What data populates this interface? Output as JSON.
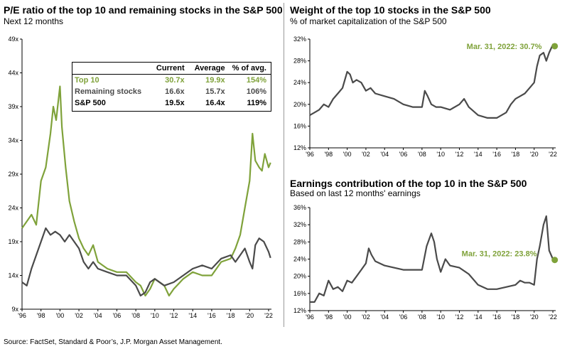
{
  "colors": {
    "top10": "#7fa23a",
    "remaining": "#4a4a4a",
    "axis": "#000000",
    "divider": "#9a9a9a"
  },
  "source": "Source: FactSet, Standard & Poor’s, J.P. Morgan Asset Management.",
  "pe_chart": {
    "title": "P/E ratio of the top 10 and remaining stocks in the S&P 500",
    "subtitle": "Next 12 months",
    "table": {
      "headers": [
        "",
        "Current",
        "Average",
        "% of avg."
      ],
      "rows": [
        {
          "name": "Top 10",
          "current": "30.7x",
          "average": "19.9x",
          "pct": "154%",
          "color": "#7fa23a"
        },
        {
          "name": "Remaining stocks",
          "current": "16.6x",
          "average": "15.7x",
          "pct": "106%",
          "color": "#4a4a4a"
        },
        {
          "name": "S&P 500",
          "current": "19.5x",
          "average": "16.4x",
          "pct": "119%",
          "color": "#000000"
        }
      ]
    }
  },
  "weight_chart": {
    "title": "Weight of the top 10 stocks in the S&P 500",
    "subtitle": "% of market capitalization of the S&P 500",
    "annotation": "Mar. 31, 2022: 30.7%"
  },
  "earnings_chart": {
    "title": "Earnings contribution of the top 10 in the S&P 500",
    "subtitle": "Based on last 12 months' earnings",
    "annotation": "Mar. 31, 2022: 23.8%"
  },
  "chart_data": [
    {
      "type": "line",
      "xlim": [
        1996,
        2022.3
      ],
      "ylim": [
        9,
        49
      ],
      "ytick_labels": [
        "9x",
        "14x",
        "19x",
        "24x",
        "29x",
        "34x",
        "39x",
        "44x",
        "49x"
      ],
      "ytick_values": [
        9,
        14,
        19,
        24,
        29,
        34,
        39,
        44,
        49
      ],
      "xtick_labels": [
        "'96",
        "'98",
        "'00",
        "'02",
        "'04",
        "'06",
        "'08",
        "'10",
        "'12",
        "'14",
        "'16",
        "'18",
        "'20",
        "'22"
      ],
      "xtick_values": [
        1996,
        1998,
        2000,
        2002,
        2004,
        2006,
        2008,
        2010,
        2012,
        2014,
        2016,
        2018,
        2020,
        2022
      ],
      "series": [
        {
          "name": "Top 10",
          "color": "#7fa23a",
          "x": [
            1996,
            1996.5,
            1997,
            1997.5,
            1998,
            1998.5,
            1999,
            1999.3,
            1999.6,
            2000,
            2000.2,
            2000.6,
            2001,
            2001.5,
            2002,
            2002.5,
            2003,
            2003.5,
            2004,
            2005,
            2006,
            2007,
            2008,
            2008.5,
            2009,
            2009.5,
            2010,
            2011,
            2011.5,
            2012,
            2013,
            2014,
            2015,
            2016,
            2017,
            2018,
            2018.5,
            2019,
            2019.5,
            2020,
            2020.3,
            2020.6,
            2021,
            2021.3,
            2021.6,
            2022,
            2022.2
          ],
          "y": [
            21,
            22,
            23,
            21.5,
            28,
            30,
            35,
            39,
            37,
            42,
            36,
            30,
            25,
            22,
            19.5,
            18,
            17,
            18.5,
            16,
            15,
            14.5,
            14.5,
            13,
            12.5,
            11,
            12,
            13.5,
            12.5,
            11,
            12,
            13.5,
            14.5,
            14,
            14,
            16,
            16.5,
            18,
            20,
            24,
            28,
            35,
            31,
            30,
            29.5,
            32,
            30,
            30.7
          ]
        },
        {
          "name": "Remaining stocks",
          "color": "#4a4a4a",
          "x": [
            1996,
            1996.5,
            1997,
            1997.5,
            1998,
            1998.5,
            1999,
            1999.5,
            2000,
            2000.5,
            2001,
            2001.5,
            2002,
            2002.5,
            2003,
            2003.5,
            2004,
            2005,
            2006,
            2007,
            2008,
            2008.5,
            2009,
            2009.5,
            2010,
            2011,
            2012,
            2013,
            2014,
            2015,
            2016,
            2017,
            2018,
            2018.5,
            2019,
            2019.5,
            2020,
            2020.3,
            2020.6,
            2021,
            2021.5,
            2022,
            2022.2
          ],
          "y": [
            13,
            12.5,
            15,
            17,
            19,
            21,
            20,
            20.5,
            20,
            19,
            20,
            19,
            18,
            16,
            15,
            16,
            15,
            14.5,
            14,
            14,
            12.5,
            11,
            11.5,
            13,
            13.5,
            12.5,
            13,
            14,
            15,
            15.5,
            15,
            16.5,
            17,
            16,
            17,
            18,
            16,
            15,
            18.5,
            19.5,
            19,
            17.5,
            16.6
          ]
        }
      ]
    },
    {
      "type": "line",
      "xlim": [
        1996,
        2022.3
      ],
      "ylim": [
        12,
        32
      ],
      "ytick_labels": [
        "12%",
        "16%",
        "20%",
        "24%",
        "28%",
        "32%"
      ],
      "ytick_values": [
        12,
        16,
        20,
        24,
        28,
        32
      ],
      "xtick_labels": [
        "'96",
        "'98",
        "'00",
        "'02",
        "'04",
        "'06",
        "'08",
        "'10",
        "'12",
        "'14",
        "'16",
        "'18",
        "'20",
        "'22"
      ],
      "xtick_values": [
        1996,
        1998,
        2000,
        2002,
        2004,
        2006,
        2008,
        2010,
        2012,
        2014,
        2016,
        2018,
        2020,
        2022
      ],
      "series": [
        {
          "color": "#4a4a4a",
          "x": [
            1996,
            1996.5,
            1997,
            1997.5,
            1998,
            1998.5,
            1999,
            1999.5,
            2000,
            2000.3,
            2000.6,
            2001,
            2001.5,
            2002,
            2002.5,
            2003,
            2004,
            2005,
            2006,
            2007,
            2008,
            2008.3,
            2008.6,
            2009,
            2009.5,
            2010,
            2011,
            2012,
            2012.5,
            2013,
            2014,
            2015,
            2016,
            2017,
            2017.5,
            2018,
            2018.5,
            2019,
            2019.5,
            2020,
            2020.3,
            2020.6,
            2021,
            2021.3,
            2021.6,
            2022,
            2022.2
          ],
          "y": [
            18,
            18.5,
            19,
            20,
            19.5,
            21,
            22,
            23,
            26,
            25.5,
            24,
            24.5,
            24,
            22.5,
            23,
            22,
            21.5,
            21,
            20,
            19.5,
            19.5,
            22.5,
            21.5,
            20,
            19.5,
            19.5,
            19,
            20,
            21,
            19.5,
            18,
            17.5,
            17.5,
            18.5,
            20,
            21,
            21.5,
            22,
            23,
            24,
            27,
            29,
            29.5,
            28,
            29.5,
            31,
            30.7
          ]
        }
      ]
    },
    {
      "type": "line",
      "xlim": [
        1996,
        2022.3
      ],
      "ylim": [
        12,
        36
      ],
      "ytick_labels": [
        "12%",
        "16%",
        "20%",
        "24%",
        "28%",
        "32%",
        "36%"
      ],
      "ytick_values": [
        12,
        16,
        20,
        24,
        28,
        32,
        36
      ],
      "xtick_labels": [
        "'96",
        "'98",
        "'00",
        "'02",
        "'04",
        "'06",
        "'08",
        "'10",
        "'12",
        "'14",
        "'16",
        "'18",
        "'20",
        "'22"
      ],
      "xtick_values": [
        1996,
        1998,
        2000,
        2002,
        2004,
        2006,
        2008,
        2010,
        2012,
        2014,
        2016,
        2018,
        2020,
        2022
      ],
      "series": [
        {
          "color": "#4a4a4a",
          "x": [
            1996,
            1996.5,
            1997,
            1997.5,
            1998,
            1998.5,
            1999,
            1999.5,
            2000,
            2000.5,
            2001,
            2001.5,
            2002,
            2002.3,
            2002.6,
            2003,
            2004,
            2005,
            2006,
            2007,
            2008,
            2008.5,
            2009,
            2009.3,
            2009.6,
            2010,
            2010.5,
            2011,
            2012,
            2013,
            2014,
            2015,
            2016,
            2017,
            2018,
            2018.5,
            2019,
            2019.5,
            2020,
            2020.3,
            2020.6,
            2021,
            2021.3,
            2021.6,
            2022,
            2022.2
          ],
          "y": [
            14,
            14,
            16,
            15.5,
            19,
            17,
            17.5,
            16.5,
            19,
            18.5,
            20,
            21.5,
            23,
            26.5,
            25,
            23.5,
            22.5,
            22,
            21.5,
            21.5,
            21.5,
            27,
            30,
            28,
            24,
            21,
            24,
            22.5,
            22,
            20.5,
            18,
            17,
            17,
            17.5,
            18,
            19,
            18.5,
            18.5,
            18,
            24,
            27,
            32,
            34,
            26,
            24,
            23.8
          ]
        }
      ]
    }
  ]
}
